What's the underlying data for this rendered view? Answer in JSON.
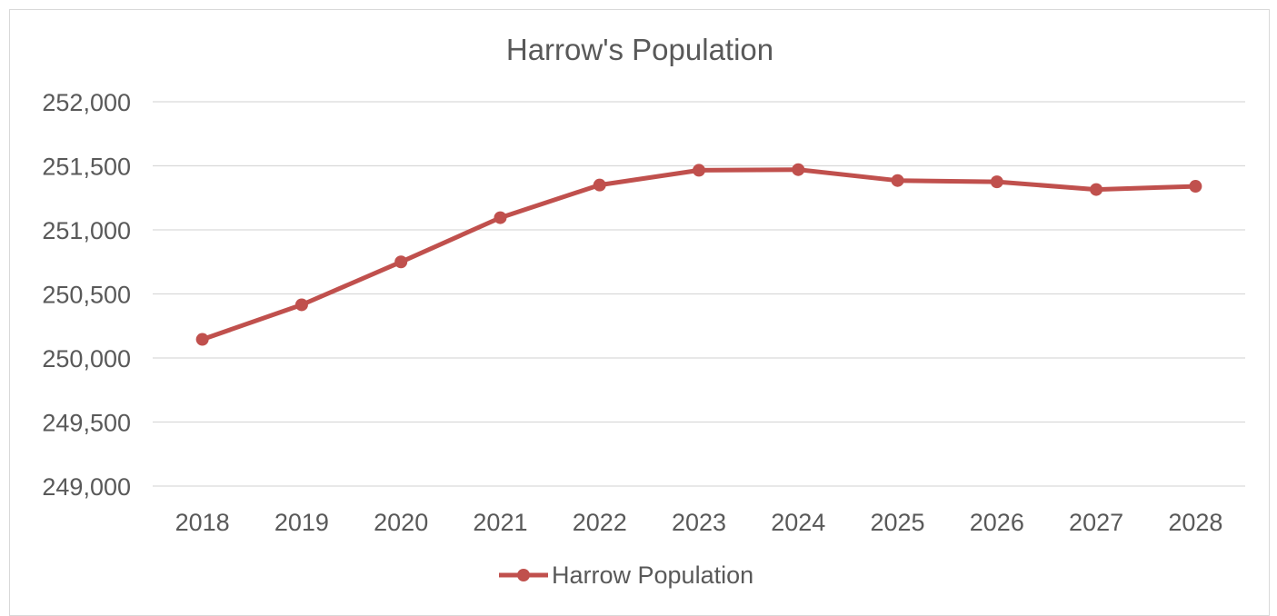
{
  "chart_data": {
    "type": "line",
    "title": "Harrow's Population",
    "xlabel": "",
    "ylabel": "",
    "x": [
      "2018",
      "2019",
      "2020",
      "2021",
      "2022",
      "2023",
      "2024",
      "2025",
      "2026",
      "2027",
      "2028"
    ],
    "series": [
      {
        "name": "Harrow Population",
        "color": "#c0504d",
        "values": [
          250145,
          250415,
          250750,
          251095,
          251350,
          251465,
          251470,
          251385,
          251375,
          251315,
          251340
        ]
      }
    ],
    "ylim": [
      249000,
      252000
    ],
    "yticks": [
      249000,
      249500,
      250000,
      250500,
      251000,
      251500,
      252000
    ],
    "ytick_labels": [
      "249,000",
      "249,500",
      "250,000",
      "250,500",
      "251,000",
      "251,500",
      "252,000"
    ],
    "grid": true,
    "legend_position": "bottom"
  }
}
